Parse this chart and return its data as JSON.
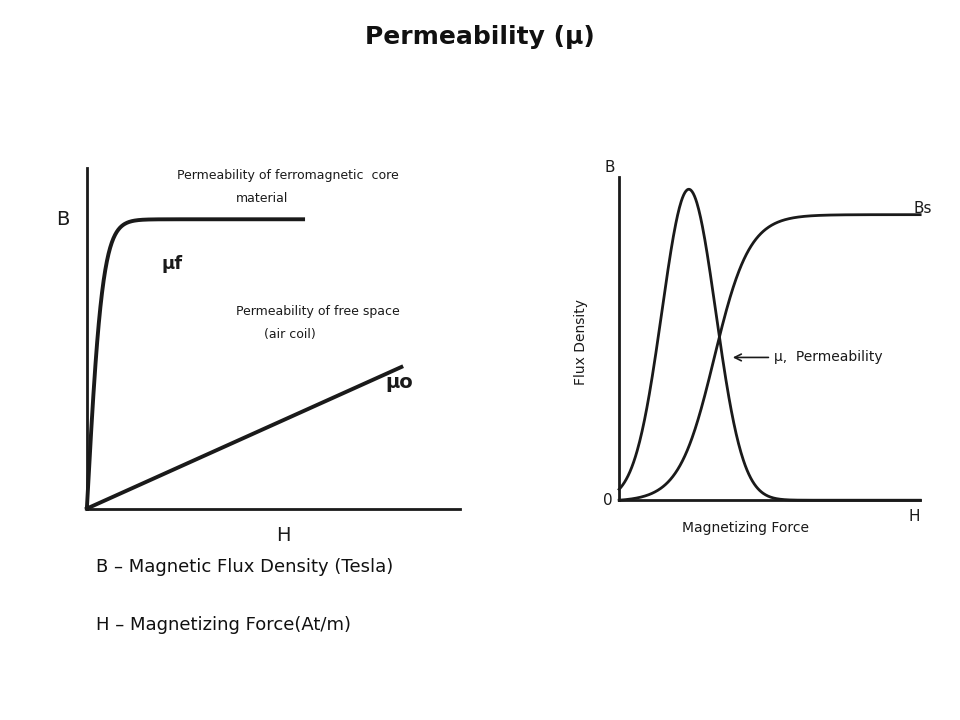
{
  "title": "Permeability (μ)",
  "title_fontsize": 18,
  "title_fontweight": "bold",
  "line_color": "#1a1a1a",
  "left_chart": {
    "B_label": "B",
    "H_label": "H",
    "mu_f_label": "μf",
    "mu_o_label": "μo",
    "annot_ferromag_line1": "Permeability of ferromagnetic  core",
    "annot_ferromag_line2": "material",
    "annot_freespace_line1": "Permeability of free space",
    "annot_freespace_line2": "(air coil)"
  },
  "right_chart": {
    "B_label": "B",
    "Bs_label": "Bs",
    "H_label": "H",
    "zero_label": "0",
    "ylabel": "Flux Density",
    "xlabel": "Magnetizing Force",
    "mu_annot": "μ,  Permeability"
  },
  "bottom_text": [
    "B – Magnetic Flux Density (Tesla)",
    "H – Magnetizing Force(At/m)"
  ]
}
